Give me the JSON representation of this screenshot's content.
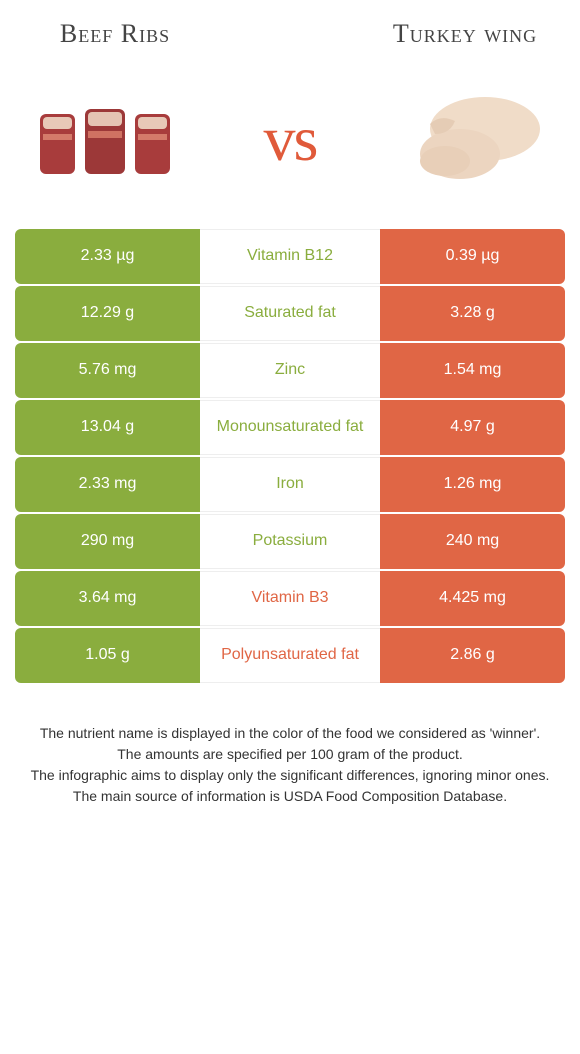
{
  "leftFood": {
    "title": "Beef Ribs"
  },
  "rightFood": {
    "title": "Turkey wing"
  },
  "vs": "vs",
  "colors": {
    "left": "#8aad3e",
    "right": "#e06645"
  },
  "rows": [
    {
      "left": "2.33 µg",
      "nutrient": "Vitamin B12",
      "right": "0.39 µg",
      "winner": "left"
    },
    {
      "left": "12.29 g",
      "nutrient": "Saturated fat",
      "right": "3.28 g",
      "winner": "left"
    },
    {
      "left": "5.76 mg",
      "nutrient": "Zinc",
      "right": "1.54 mg",
      "winner": "left"
    },
    {
      "left": "13.04 g",
      "nutrient": "Monounsaturated fat",
      "right": "4.97 g",
      "winner": "left"
    },
    {
      "left": "2.33 mg",
      "nutrient": "Iron",
      "right": "1.26 mg",
      "winner": "left"
    },
    {
      "left": "290 mg",
      "nutrient": "Potassium",
      "right": "240 mg",
      "winner": "left"
    },
    {
      "left": "3.64 mg",
      "nutrient": "Vitamin B3",
      "right": "4.425 mg",
      "winner": "right"
    },
    {
      "left": "1.05 g",
      "nutrient": "Polyunsaturated fat",
      "right": "2.86 g",
      "winner": "right"
    }
  ],
  "footer": {
    "line1": "The nutrient name is displayed in the color of the food we considered as 'winner'.",
    "line2": "The amounts are specified per 100 gram of the product.",
    "line3": "The infographic aims to display only the significant differences, ignoring minor ones.",
    "line4": "The main source of information is USDA Food Composition Database."
  }
}
